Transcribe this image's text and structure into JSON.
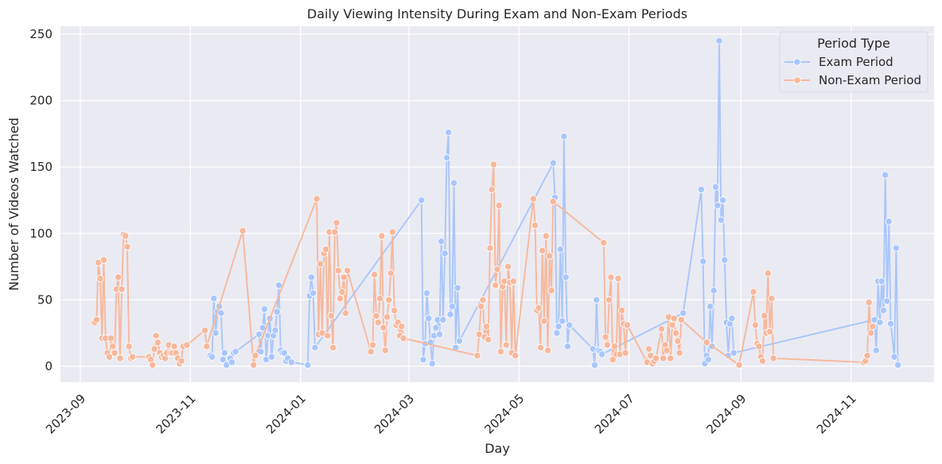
{
  "chart_data": {
    "type": "line",
    "title": "Daily Viewing Intensity During Exam and Non-Exam Periods",
    "xlabel": "Day",
    "ylabel": "Number of Videos Watched",
    "x_type": "date",
    "xlim": [
      "2023-08-21",
      "2024-12-17"
    ],
    "ylim": [
      -12,
      256
    ],
    "x_ticks": [
      "2023-09",
      "2023-11",
      "2024-01",
      "2024-03",
      "2024-05",
      "2024-07",
      "2024-09",
      "2024-11"
    ],
    "x_tick_dates": [
      "2023-09-01",
      "2023-11-01",
      "2024-01-01",
      "2024-03-01",
      "2024-05-01",
      "2024-07-01",
      "2024-09-01",
      "2024-11-01"
    ],
    "y_ticks": [
      0,
      50,
      100,
      150,
      200,
      250
    ],
    "grid": true,
    "legend": {
      "title": "Period Type",
      "position": "top-right"
    },
    "series": [
      {
        "name": "Exam Period",
        "color": "#a9c6fc",
        "points": [
          [
            "2023-11-12",
            8
          ],
          [
            "2023-11-13",
            7
          ],
          [
            "2023-11-14",
            51
          ],
          [
            "2023-11-15",
            25
          ],
          [
            "2023-11-16",
            41
          ],
          [
            "2023-11-17",
            45
          ],
          [
            "2023-11-18",
            40
          ],
          [
            "2023-11-19",
            5
          ],
          [
            "2023-11-20",
            10
          ],
          [
            "2023-11-21",
            1
          ],
          [
            "2023-11-23",
            6
          ],
          [
            "2023-11-24",
            3
          ],
          [
            "2023-11-25",
            10
          ],
          [
            "2023-11-26",
            11
          ],
          [
            "2023-12-09",
            24
          ],
          [
            "2023-12-10",
            11
          ],
          [
            "2023-12-11",
            29
          ],
          [
            "2023-12-12",
            43
          ],
          [
            "2023-12-13",
            5
          ],
          [
            "2023-12-14",
            23
          ],
          [
            "2023-12-15",
            36
          ],
          [
            "2023-12-16",
            7
          ],
          [
            "2023-12-17",
            23
          ],
          [
            "2023-12-18",
            27
          ],
          [
            "2023-12-19",
            41
          ],
          [
            "2023-12-20",
            61
          ],
          [
            "2023-12-21",
            12
          ],
          [
            "2023-12-22",
            10
          ],
          [
            "2023-12-23",
            10
          ],
          [
            "2023-12-24",
            4
          ],
          [
            "2023-12-25",
            6
          ],
          [
            "2023-12-27",
            3
          ],
          [
            "2024-01-05",
            1
          ],
          [
            "2024-01-06",
            53
          ],
          [
            "2024-01-07",
            67
          ],
          [
            "2024-01-08",
            55
          ],
          [
            "2024-01-09",
            14
          ],
          [
            "2024-03-08",
            125
          ],
          [
            "2024-03-09",
            5
          ],
          [
            "2024-03-10",
            17
          ],
          [
            "2024-03-11",
            55
          ],
          [
            "2024-03-12",
            36
          ],
          [
            "2024-03-13",
            18
          ],
          [
            "2024-03-14",
            2
          ],
          [
            "2024-03-15",
            23
          ],
          [
            "2024-03-16",
            29
          ],
          [
            "2024-03-17",
            35
          ],
          [
            "2024-03-18",
            24
          ],
          [
            "2024-03-19",
            94
          ],
          [
            "2024-03-20",
            35
          ],
          [
            "2024-03-21",
            85
          ],
          [
            "2024-03-22",
            157
          ],
          [
            "2024-03-23",
            176
          ],
          [
            "2024-03-24",
            39
          ],
          [
            "2024-03-25",
            45
          ],
          [
            "2024-03-26",
            138
          ],
          [
            "2024-03-27",
            14
          ],
          [
            "2024-03-28",
            59
          ],
          [
            "2024-03-29",
            19
          ],
          [
            "2024-05-20",
            153
          ],
          [
            "2024-05-21",
            127
          ],
          [
            "2024-05-22",
            25
          ],
          [
            "2024-05-23",
            30
          ],
          [
            "2024-05-24",
            88
          ],
          [
            "2024-05-25",
            34
          ],
          [
            "2024-05-26",
            173
          ],
          [
            "2024-05-27",
            67
          ],
          [
            "2024-05-28",
            15
          ],
          [
            "2024-05-29",
            31
          ],
          [
            "2024-06-11",
            13
          ],
          [
            "2024-06-12",
            1
          ],
          [
            "2024-06-13",
            50
          ],
          [
            "2024-06-14",
            12
          ],
          [
            "2024-06-15",
            11
          ],
          [
            "2024-06-16",
            9
          ],
          [
            "2024-07-31",
            40
          ],
          [
            "2024-08-10",
            133
          ],
          [
            "2024-08-11",
            79
          ],
          [
            "2024-08-12",
            2
          ],
          [
            "2024-08-13",
            8
          ],
          [
            "2024-08-14",
            5
          ],
          [
            "2024-08-15",
            45
          ],
          [
            "2024-08-16",
            15
          ],
          [
            "2024-08-17",
            57
          ],
          [
            "2024-08-18",
            135
          ],
          [
            "2024-08-19",
            121
          ],
          [
            "2024-08-20",
            245
          ],
          [
            "2024-08-21",
            110
          ],
          [
            "2024-08-22",
            125
          ],
          [
            "2024-08-23",
            80
          ],
          [
            "2024-08-24",
            33
          ],
          [
            "2024-08-25",
            8
          ],
          [
            "2024-08-26",
            32
          ],
          [
            "2024-08-27",
            36
          ],
          [
            "2024-08-28",
            10
          ],
          [
            "2024-11-14",
            35
          ],
          [
            "2024-11-15",
            12
          ],
          [
            "2024-11-16",
            64
          ],
          [
            "2024-11-17",
            33
          ],
          [
            "2024-11-18",
            64
          ],
          [
            "2024-11-19",
            42
          ],
          [
            "2024-11-20",
            144
          ],
          [
            "2024-11-21",
            49
          ],
          [
            "2024-11-22",
            109
          ],
          [
            "2024-11-23",
            32
          ],
          [
            "2024-11-25",
            7
          ],
          [
            "2024-11-26",
            89
          ],
          [
            "2024-11-27",
            1
          ]
        ]
      },
      {
        "name": "Non-Exam Period",
        "color": "#f7b89c",
        "points": [
          [
            "2023-09-09",
            33
          ],
          [
            "2023-09-10",
            35
          ],
          [
            "2023-09-11",
            78
          ],
          [
            "2023-09-12",
            66
          ],
          [
            "2023-09-13",
            21
          ],
          [
            "2023-09-14",
            80
          ],
          [
            "2023-09-15",
            21
          ],
          [
            "2023-09-16",
            10
          ],
          [
            "2023-09-17",
            7
          ],
          [
            "2023-09-18",
            21
          ],
          [
            "2023-09-19",
            15
          ],
          [
            "2023-09-20",
            10
          ],
          [
            "2023-09-21",
            58
          ],
          [
            "2023-09-22",
            67
          ],
          [
            "2023-09-23",
            6
          ],
          [
            "2023-09-24",
            58
          ],
          [
            "2023-09-25",
            99
          ],
          [
            "2023-09-26",
            98
          ],
          [
            "2023-09-27",
            90
          ],
          [
            "2023-09-28",
            15
          ],
          [
            "2023-09-29",
            6
          ],
          [
            "2023-09-30",
            7
          ],
          [
            "2023-10-09",
            7
          ],
          [
            "2023-10-10",
            5
          ],
          [
            "2023-10-11",
            1
          ],
          [
            "2023-10-12",
            13
          ],
          [
            "2023-10-13",
            23
          ],
          [
            "2023-10-14",
            18
          ],
          [
            "2023-10-15",
            10
          ],
          [
            "2023-10-16",
            7
          ],
          [
            "2023-10-17",
            8
          ],
          [
            "2023-10-18",
            6
          ],
          [
            "2023-10-19",
            10
          ],
          [
            "2023-10-20",
            16
          ],
          [
            "2023-10-21",
            10
          ],
          [
            "2023-10-22",
            10
          ],
          [
            "2023-10-23",
            15
          ],
          [
            "2023-10-24",
            10
          ],
          [
            "2023-10-25",
            6
          ],
          [
            "2023-10-26",
            2
          ],
          [
            "2023-10-27",
            4
          ],
          [
            "2023-10-28",
            15
          ],
          [
            "2023-10-30",
            16
          ],
          [
            "2023-11-09",
            27
          ],
          [
            "2023-11-10",
            15
          ],
          [
            "2023-11-30",
            102
          ],
          [
            "2023-12-06",
            1
          ],
          [
            "2023-12-07",
            8
          ],
          [
            "2024-01-10",
            126
          ],
          [
            "2024-01-11",
            24
          ],
          [
            "2024-01-12",
            77
          ],
          [
            "2024-01-13",
            25
          ],
          [
            "2024-01-14",
            85
          ],
          [
            "2024-01-15",
            88
          ],
          [
            "2024-01-16",
            23
          ],
          [
            "2024-01-17",
            101
          ],
          [
            "2024-01-18",
            38
          ],
          [
            "2024-01-19",
            14
          ],
          [
            "2024-01-20",
            101
          ],
          [
            "2024-01-21",
            108
          ],
          [
            "2024-01-22",
            72
          ],
          [
            "2024-01-23",
            51
          ],
          [
            "2024-01-24",
            56
          ],
          [
            "2024-01-25",
            67
          ],
          [
            "2024-01-26",
            40
          ],
          [
            "2024-01-27",
            72
          ],
          [
            "2024-02-09",
            11
          ],
          [
            "2024-02-10",
            16
          ],
          [
            "2024-02-11",
            69
          ],
          [
            "2024-02-12",
            38
          ],
          [
            "2024-02-13",
            33
          ],
          [
            "2024-02-14",
            51
          ],
          [
            "2024-02-15",
            98
          ],
          [
            "2024-02-16",
            29
          ],
          [
            "2024-02-17",
            12
          ],
          [
            "2024-02-18",
            37
          ],
          [
            "2024-02-19",
            50
          ],
          [
            "2024-02-20",
            70
          ],
          [
            "2024-02-21",
            101
          ],
          [
            "2024-02-22",
            42
          ],
          [
            "2024-02-23",
            31
          ],
          [
            "2024-02-24",
            33
          ],
          [
            "2024-02-25",
            23
          ],
          [
            "2024-02-26",
            30
          ],
          [
            "2024-02-27",
            21
          ],
          [
            "2024-04-08",
            8
          ],
          [
            "2024-04-09",
            24
          ],
          [
            "2024-04-10",
            45
          ],
          [
            "2024-04-11",
            50
          ],
          [
            "2024-04-12",
            22
          ],
          [
            "2024-04-13",
            30
          ],
          [
            "2024-04-14",
            20
          ],
          [
            "2024-04-15",
            89
          ],
          [
            "2024-04-16",
            133
          ],
          [
            "2024-04-17",
            152
          ],
          [
            "2024-04-18",
            61
          ],
          [
            "2024-04-19",
            73
          ],
          [
            "2024-04-20",
            121
          ],
          [
            "2024-04-21",
            11
          ],
          [
            "2024-04-22",
            60
          ],
          [
            "2024-04-23",
            64
          ],
          [
            "2024-04-24",
            16
          ],
          [
            "2024-04-25",
            75
          ],
          [
            "2024-04-26",
            63
          ],
          [
            "2024-04-27",
            10
          ],
          [
            "2024-04-28",
            64
          ],
          [
            "2024-04-29",
            8
          ],
          [
            "2024-05-09",
            126
          ],
          [
            "2024-05-10",
            106
          ],
          [
            "2024-05-11",
            42
          ],
          [
            "2024-05-12",
            44
          ],
          [
            "2024-05-13",
            14
          ],
          [
            "2024-05-14",
            87
          ],
          [
            "2024-05-15",
            34
          ],
          [
            "2024-05-16",
            98
          ],
          [
            "2024-05-17",
            12
          ],
          [
            "2024-05-18",
            83
          ],
          [
            "2024-05-19",
            57
          ],
          [
            "2024-05-20",
            124
          ],
          [
            "2024-06-17",
            93
          ],
          [
            "2024-06-18",
            22
          ],
          [
            "2024-06-19",
            16
          ],
          [
            "2024-06-20",
            50
          ],
          [
            "2024-06-21",
            67
          ],
          [
            "2024-06-22",
            5
          ],
          [
            "2024-06-23",
            15
          ],
          [
            "2024-06-24",
            9
          ],
          [
            "2024-06-25",
            66
          ],
          [
            "2024-06-26",
            9
          ],
          [
            "2024-06-27",
            42
          ],
          [
            "2024-06-28",
            32
          ],
          [
            "2024-06-29",
            10
          ],
          [
            "2024-06-30",
            31
          ],
          [
            "2024-07-11",
            3
          ],
          [
            "2024-07-12",
            13
          ],
          [
            "2024-07-13",
            8
          ],
          [
            "2024-07-14",
            2
          ],
          [
            "2024-07-15",
            4
          ],
          [
            "2024-07-16",
            6
          ],
          [
            "2024-07-19",
            28
          ],
          [
            "2024-07-20",
            6
          ],
          [
            "2024-07-21",
            16
          ],
          [
            "2024-07-22",
            12
          ],
          [
            "2024-07-23",
            37
          ],
          [
            "2024-07-24",
            6
          ],
          [
            "2024-07-25",
            31
          ],
          [
            "2024-07-26",
            36
          ],
          [
            "2024-07-27",
            25
          ],
          [
            "2024-07-28",
            19
          ],
          [
            "2024-07-29",
            10
          ],
          [
            "2024-07-30",
            35
          ],
          [
            "2024-08-13",
            18
          ],
          [
            "2024-08-31",
            1
          ],
          [
            "2024-09-08",
            56
          ],
          [
            "2024-09-09",
            31
          ],
          [
            "2024-09-10",
            17
          ],
          [
            "2024-09-11",
            15
          ],
          [
            "2024-09-12",
            7
          ],
          [
            "2024-09-13",
            4
          ],
          [
            "2024-09-14",
            38
          ],
          [
            "2024-09-15",
            25
          ],
          [
            "2024-09-16",
            70
          ],
          [
            "2024-09-17",
            26
          ],
          [
            "2024-09-18",
            51
          ],
          [
            "2024-09-19",
            6
          ],
          [
            "2024-11-08",
            3
          ],
          [
            "2024-11-09",
            4
          ],
          [
            "2024-11-10",
            8
          ],
          [
            "2024-11-11",
            48
          ],
          [
            "2024-11-12",
            25
          ],
          [
            "2024-11-13",
            30
          ]
        ]
      }
    ]
  }
}
